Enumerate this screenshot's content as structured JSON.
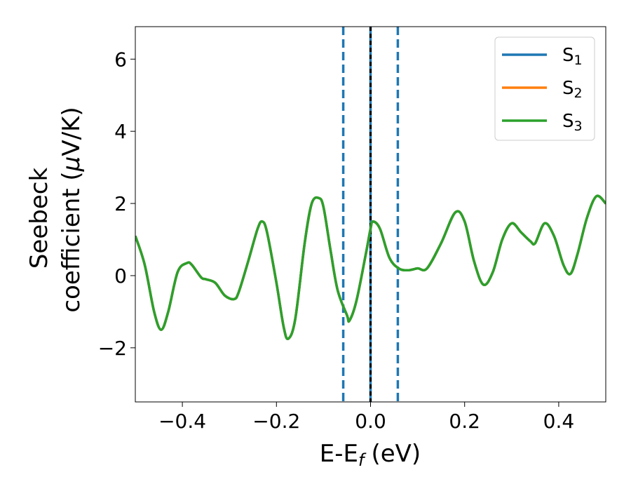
{
  "chart_data": {
    "type": "line",
    "title": "",
    "xlabel": {
      "main": "E-E",
      "sub": "f",
      "unit": "(eV)"
    },
    "ylabel": {
      "line1": "Seebeck",
      "line2_text": "coefficient  (",
      "line2_mu": "μ",
      "line2_unit": "V/K)"
    },
    "xlim": [
      -0.5,
      0.5
    ],
    "ylim": [
      -3.5,
      6.9
    ],
    "xticks": [
      -0.4,
      -0.2,
      0.0,
      0.2,
      0.4
    ],
    "xtick_labels": [
      "−0.4",
      "−0.2",
      "0.0",
      "0.2",
      "0.4"
    ],
    "yticks": [
      -2,
      0,
      2,
      4,
      6
    ],
    "ytick_labels": [
      "−2",
      "0",
      "2",
      "4",
      "6"
    ],
    "grid": false,
    "legend": {
      "placement": "top-right"
    },
    "vertical_lines": [
      {
        "x": -0.058,
        "style": "dashed",
        "color": "#1f77b4"
      },
      {
        "x": 0.0,
        "style": "solid",
        "color": "#1f77b4"
      },
      {
        "x": 0.0,
        "style": "dashed",
        "color": "#000000"
      },
      {
        "x": 0.058,
        "style": "dashed",
        "color": "#1f77b4"
      }
    ],
    "x": [
      -0.5,
      -0.48,
      -0.46,
      -0.445,
      -0.43,
      -0.41,
      -0.39,
      -0.38,
      -0.36,
      -0.35,
      -0.33,
      -0.31,
      -0.29,
      -0.28,
      -0.26,
      -0.24,
      -0.23,
      -0.22,
      -0.2,
      -0.185,
      -0.175,
      -0.16,
      -0.14,
      -0.125,
      -0.11,
      -0.1,
      -0.085,
      -0.07,
      -0.05,
      -0.045,
      -0.03,
      -0.01,
      0.0,
      0.005,
      0.02,
      0.04,
      0.06,
      0.08,
      0.1,
      0.12,
      0.15,
      0.18,
      0.2,
      0.22,
      0.24,
      0.26,
      0.28,
      0.3,
      0.32,
      0.34,
      0.35,
      0.37,
      0.39,
      0.41,
      0.425,
      0.44,
      0.46,
      0.48,
      0.5
    ],
    "series": [
      {
        "name": "S",
        "sub": "1",
        "color": "#1f77b4",
        "y": [
          1.1,
          0.3,
          -1.0,
          -1.5,
          -1.0,
          0.1,
          0.35,
          0.3,
          -0.05,
          -0.1,
          -0.2,
          -0.55,
          -0.65,
          -0.45,
          0.4,
          1.3,
          1.5,
          1.2,
          -0.2,
          -1.4,
          -1.75,
          -1.2,
          0.9,
          2.0,
          2.15,
          1.9,
          0.7,
          -0.4,
          -1.1,
          -1.25,
          -0.7,
          0.6,
          1.3,
          1.5,
          1.3,
          0.5,
          0.2,
          0.15,
          0.2,
          0.2,
          0.9,
          1.75,
          1.5,
          0.4,
          -0.25,
          0.1,
          1.0,
          1.45,
          1.2,
          0.95,
          0.9,
          1.45,
          1.1,
          0.3,
          0.05,
          0.6,
          1.6,
          2.2,
          2.0
        ]
      },
      {
        "name": "S",
        "sub": "2",
        "color": "#ff7f0e",
        "y": [
          1.1,
          0.3,
          -1.0,
          -1.5,
          -1.0,
          0.1,
          0.35,
          0.3,
          -0.05,
          -0.1,
          -0.2,
          -0.55,
          -0.65,
          -0.45,
          0.4,
          1.3,
          1.5,
          1.2,
          -0.2,
          -1.4,
          -1.75,
          -1.2,
          0.9,
          2.0,
          2.15,
          1.9,
          0.7,
          -0.4,
          -1.1,
          -1.25,
          -0.7,
          0.6,
          1.3,
          1.5,
          1.3,
          0.5,
          0.2,
          0.15,
          0.2,
          0.2,
          0.9,
          1.75,
          1.5,
          0.4,
          -0.25,
          0.1,
          1.0,
          1.45,
          1.2,
          0.95,
          0.9,
          1.45,
          1.1,
          0.3,
          0.05,
          0.6,
          1.6,
          2.2,
          2.0
        ]
      },
      {
        "name": "S",
        "sub": "3",
        "color": "#2ca02c",
        "y": [
          1.1,
          0.3,
          -1.0,
          -1.5,
          -1.0,
          0.1,
          0.35,
          0.3,
          -0.05,
          -0.1,
          -0.2,
          -0.55,
          -0.65,
          -0.45,
          0.4,
          1.3,
          1.5,
          1.2,
          -0.2,
          -1.4,
          -1.75,
          -1.2,
          0.9,
          2.0,
          2.15,
          1.9,
          0.7,
          -0.4,
          -1.1,
          -1.25,
          -0.7,
          0.6,
          1.3,
          1.5,
          1.3,
          0.5,
          0.2,
          0.15,
          0.2,
          0.2,
          0.9,
          1.75,
          1.5,
          0.4,
          -0.25,
          0.1,
          1.0,
          1.45,
          1.2,
          0.95,
          0.9,
          1.45,
          1.1,
          0.3,
          0.05,
          0.6,
          1.6,
          2.2,
          2.0
        ]
      }
    ]
  }
}
